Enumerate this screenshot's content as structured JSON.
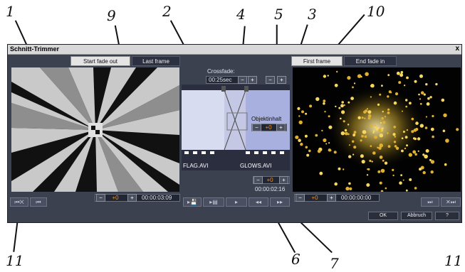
{
  "callouts": [
    "1",
    "9",
    "2",
    "4",
    "5",
    "3",
    "10",
    "11",
    "6",
    "7",
    "11"
  ],
  "window": {
    "title": "Schnitt-Trimmer",
    "close": "x"
  },
  "left_panel": {
    "tab_fade_out": "Start fade out",
    "tab_last_frame": "Last frame",
    "offset": "+0",
    "timecode": "00:00:03:09",
    "minus": "−",
    "plus": "+"
  },
  "right_panel": {
    "tab_first_frame": "First frame",
    "tab_fade_in": "End fade in",
    "offset": "+0",
    "timecode": "00:00:00:00",
    "minus": "−",
    "plus": "+"
  },
  "center": {
    "crossfade_label": "Crossfade:",
    "crossfade_value": "00:25sec",
    "objekt_label": "Objektinhalt",
    "objekt_offset": "+0",
    "clip_left": "FLAG.AVI",
    "clip_right": "GLOWS.AVI",
    "bottom_offset": "+0",
    "bottom_timecode": "00:00:02:16",
    "minus": "−",
    "plus": "+"
  },
  "buttons": {
    "ok": "OK",
    "cancel": "Abbruch",
    "help": "?"
  },
  "icons": {
    "rewind_cut": "⏮✕",
    "rewind": "⏮",
    "ff": "⏭",
    "cut_ff": "✕⏭",
    "save": "▸💾",
    "film": "▸▤",
    "play": "▸",
    "prev": "◂◂",
    "next": "▸▸"
  },
  "colors": {
    "window_bg": "#3c4150",
    "accent_value": "#f29020",
    "timeline_bg": "#c4c8e4"
  }
}
